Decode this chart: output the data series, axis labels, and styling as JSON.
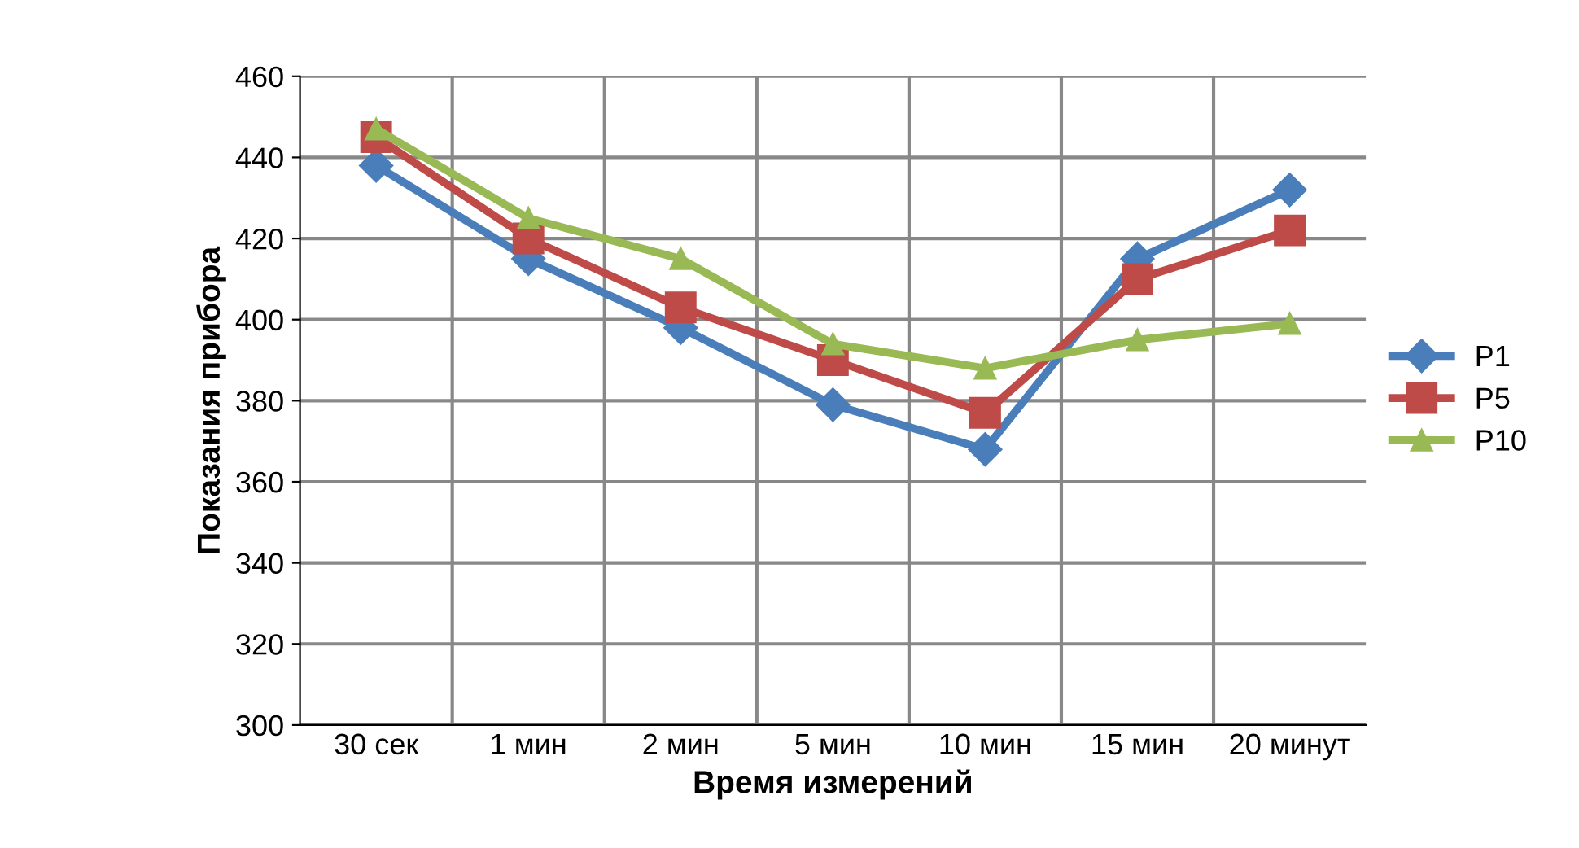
{
  "chart_data": {
    "type": "line",
    "xlabel": "Время измерений",
    "ylabel": "Показания прибора",
    "categories": [
      "30 сек",
      "1 мин",
      "2 мин",
      "5 мин",
      "10 мин",
      "15 мин",
      "20 минут"
    ],
    "series": [
      {
        "name": "P1",
        "color": "#4a7ebb",
        "marker": "diamond",
        "values": [
          438,
          415,
          398,
          379,
          368,
          415,
          432
        ]
      },
      {
        "name": "P5",
        "color": "#be4b48",
        "marker": "square",
        "values": [
          445,
          420,
          403,
          390,
          377,
          410,
          422
        ]
      },
      {
        "name": "P10",
        "color": "#98b954",
        "marker": "triangle",
        "values": [
          447,
          425,
          415,
          394,
          388,
          395,
          399
        ]
      }
    ],
    "ylim": [
      300,
      460
    ],
    "yticks": [
      300,
      320,
      340,
      360,
      380,
      400,
      420,
      440,
      460
    ],
    "grid": true,
    "legend": "right",
    "line_style": "solid"
  }
}
